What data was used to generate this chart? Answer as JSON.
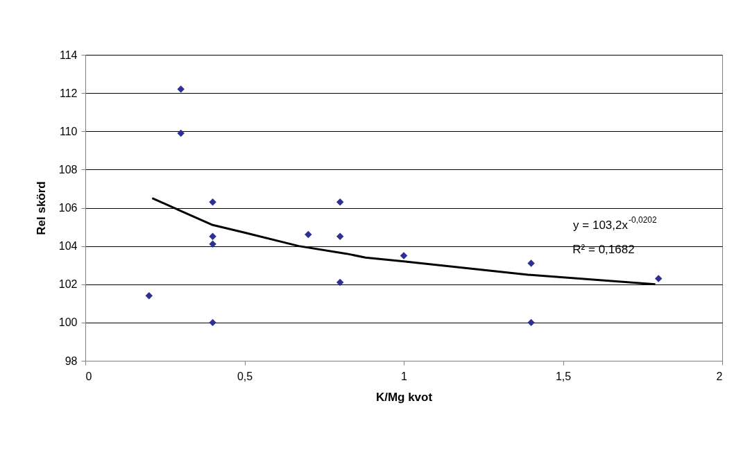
{
  "chart_data": {
    "type": "scatter",
    "xlabel": "K/Mg kvot",
    "ylabel": "Rel skörd",
    "xlim": [
      0,
      2
    ],
    "xticks": [
      0,
      {
        "value": 0.5,
        "label": "0,5"
      },
      1,
      {
        "value": 1.5,
        "label": "1,5"
      },
      2
    ],
    "ylim": [
      98,
      114
    ],
    "yticks": [
      98,
      100,
      102,
      104,
      106,
      108,
      110,
      112,
      114
    ],
    "grid": "y",
    "series": [
      {
        "color": "#2e3192",
        "marker": "diamond",
        "x": [
          0.2,
          0.3,
          0.3,
          0.4,
          0.4,
          0.4,
          0.4,
          0.7,
          0.8,
          0.8,
          0.8,
          1.0,
          1.4,
          1.4,
          1.8
        ],
        "values": [
          101.4,
          112.2,
          109.9,
          106.3,
          104.5,
          104.1,
          100.0,
          104.6,
          106.3,
          104.5,
          102.1,
          103.5,
          103.1,
          100.0,
          102.3
        ]
      },
      {
        "type": "line",
        "marker": "none",
        "line_style": "solid",
        "color": "#000000",
        "x": [
          0.21,
          0.4,
          0.5,
          0.67,
          0.82,
          0.88,
          1.0,
          1.39,
          1.79
        ],
        "values": [
          106.5,
          105.1,
          104.7,
          104.0,
          103.6,
          103.4,
          103.2,
          102.5,
          102.0
        ]
      }
    ],
    "annotations": [
      "y = 103,2x$^{-0,0202}$",
      "R² = 0,1682"
    ]
  }
}
